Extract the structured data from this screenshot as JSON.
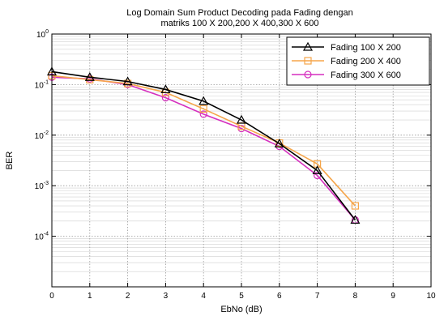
{
  "chart_data": {
    "type": "line",
    "title": "Log Domain Sum Product Decoding pada Fading dengan",
    "subtitle": "matriks 100 X 200,200 X 400,300 X 600",
    "xlabel": "EbNo (dB)",
    "ylabel": "BER",
    "x_scale": "linear",
    "y_scale": "log",
    "xlim": [
      0,
      10
    ],
    "ylim": [
      1e-05,
      1
    ],
    "x_ticks": [
      "0",
      "1",
      "2",
      "3",
      "4",
      "5",
      "6",
      "7",
      "8",
      "9",
      "10"
    ],
    "y_ticks": [
      {
        "base": "10",
        "exp": "0"
      },
      {
        "base": "10",
        "exp": "-1"
      },
      {
        "base": "10",
        "exp": "-2"
      },
      {
        "base": "10",
        "exp": "-3"
      },
      {
        "base": "10",
        "exp": "-4"
      }
    ],
    "grid": true,
    "legend_position": "top-right",
    "series": [
      {
        "name": "Fading 100 X 200",
        "color": "#000000",
        "marker": "triangle",
        "x": [
          0,
          1,
          2,
          3,
          4,
          5,
          6,
          7,
          8
        ],
        "y": [
          0.18,
          0.14,
          0.115,
          0.08,
          0.047,
          0.02,
          0.0068,
          0.002,
          0.00021
        ]
      },
      {
        "name": "Fading 200 X 400",
        "color": "#f5a54a",
        "marker": "square",
        "x": [
          0,
          1,
          2,
          3,
          4,
          5,
          6,
          7,
          8
        ],
        "y": [
          0.15,
          0.125,
          0.105,
          0.07,
          0.033,
          0.015,
          0.007,
          0.0027,
          0.0004
        ]
      },
      {
        "name": "Fading 300 X 600",
        "color": "#d62fbf",
        "marker": "circle",
        "x": [
          0,
          1,
          2,
          3,
          4,
          5,
          6,
          7,
          8
        ],
        "y": [
          0.14,
          0.13,
          0.1,
          0.055,
          0.026,
          0.0135,
          0.006,
          0.0016,
          0.00021
        ]
      }
    ]
  }
}
